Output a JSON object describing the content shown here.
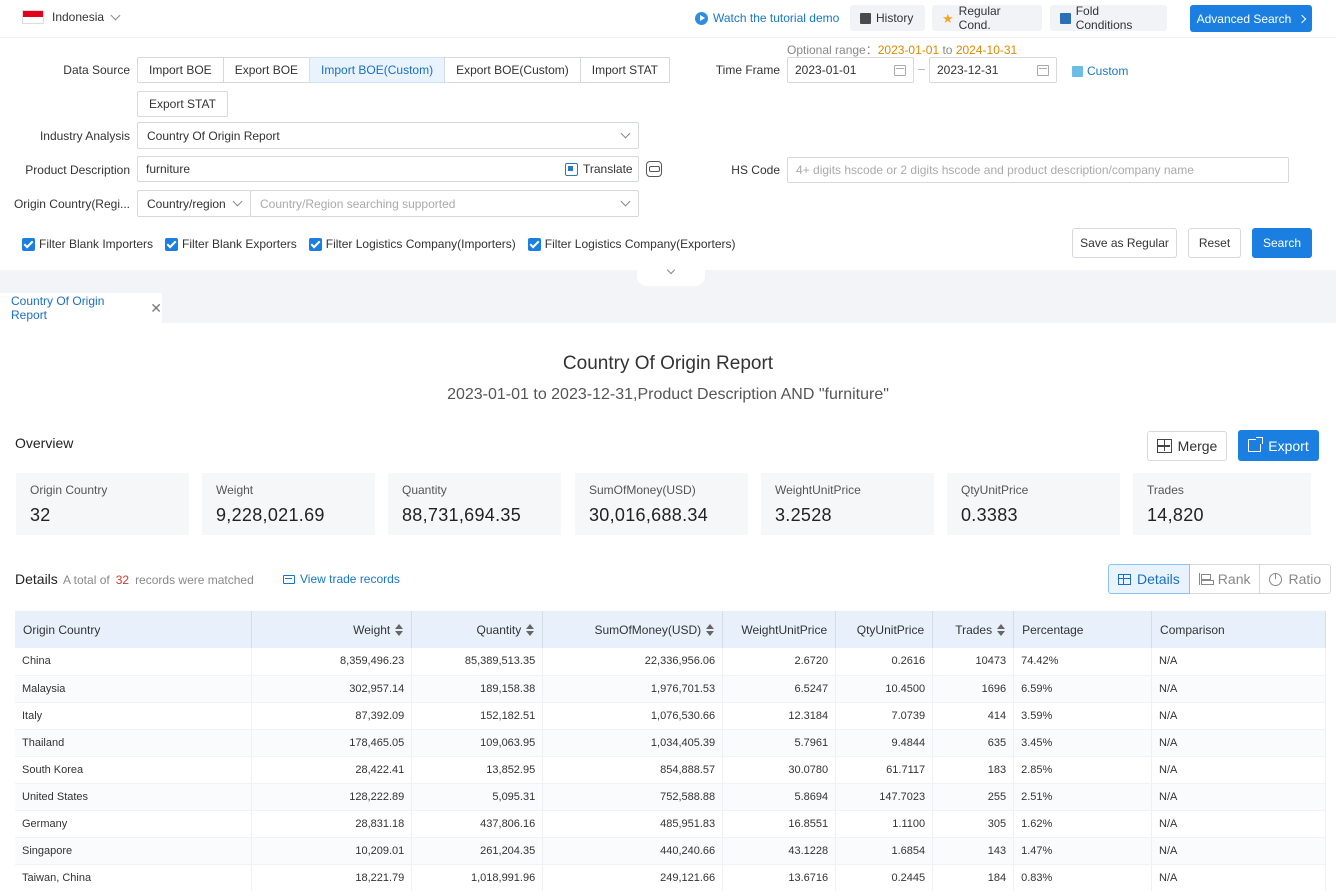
{
  "topbar": {
    "country": "Indonesia",
    "tutorial": "Watch the tutorial demo",
    "history": "History",
    "regular_cond": "Regular Cond.",
    "fold_conditions": "Fold Conditions",
    "advanced_search": "Advanced Search"
  },
  "form": {
    "optional_range_label": "Optional range：",
    "optional_from": "2023-01-01",
    "optional_to_word": "to",
    "optional_to": "2024-10-31",
    "data_source_label": "Data Source",
    "data_source_options": [
      "Import BOE",
      "Export BOE",
      "Import BOE(Custom)",
      "Export BOE(Custom)",
      "Import STAT",
      "Export STAT"
    ],
    "data_source_selected": "Import BOE(Custom)",
    "time_frame_label": "Time Frame",
    "date_start": "2023-01-01",
    "date_end": "2023-12-31",
    "custom": "Custom",
    "industry_label": "Industry Analysis",
    "industry_value": "Country Of Origin Report",
    "product_label": "Product Description",
    "product_value": "furniture",
    "translate": "Translate",
    "hs_label": "HS Code",
    "hs_placeholder": "4+ digits hscode or 2 digits hscode and product description/company name",
    "origin_label": "Origin Country(Regi...",
    "origin_mode": "Country/region",
    "origin_placeholder": "Country/Region searching supported",
    "filters": [
      "Filter Blank Importers",
      "Filter Blank Exporters",
      "Filter Logistics Company(Importers)",
      "Filter Logistics Company(Exporters)"
    ],
    "save_regular": "Save as Regular",
    "reset": "Reset",
    "search": "Search"
  },
  "tab": {
    "label": "Country Of Origin Report"
  },
  "report": {
    "title": "Country Of Origin Report",
    "subtitle": "2023-01-01 to 2023-12-31,Product Description AND \"furniture\""
  },
  "overview": {
    "heading": "Overview",
    "merge": "Merge",
    "export": "Export",
    "stats": [
      {
        "label": "Origin Country",
        "value": "32"
      },
      {
        "label": "Weight",
        "value": "9,228,021.69"
      },
      {
        "label": "Quantity",
        "value": "88,731,694.35"
      },
      {
        "label": "SumOfMoney(USD)",
        "value": "30,016,688.34"
      },
      {
        "label": "WeightUnitPrice",
        "value": "3.2528"
      },
      {
        "label": "QtyUnitPrice",
        "value": "0.3383"
      },
      {
        "label": "Trades",
        "value": "14,820"
      }
    ]
  },
  "details": {
    "heading": "Details",
    "total_prefix": "A total of",
    "total_count": "32",
    "total_suffix": "records were matched",
    "view_trade": "View trade records",
    "views": [
      "Details",
      "Rank",
      "Ratio"
    ],
    "columns": [
      "Origin Country",
      "Weight",
      "Quantity",
      "SumOfMoney(USD)",
      "WeightUnitPrice",
      "QtyUnitPrice",
      "Trades",
      "Percentage",
      "Comparison"
    ],
    "rows": [
      [
        "China",
        "8,359,496.23",
        "85,389,513.35",
        "22,336,956.06",
        "2.6720",
        "0.2616",
        "10473",
        "74.42%",
        "N/A"
      ],
      [
        "Malaysia",
        "302,957.14",
        "189,158.38",
        "1,976,701.53",
        "6.5247",
        "10.4500",
        "1696",
        "6.59%",
        "N/A"
      ],
      [
        "Italy",
        "87,392.09",
        "152,182.51",
        "1,076,530.66",
        "12.3184",
        "7.0739",
        "414",
        "3.59%",
        "N/A"
      ],
      [
        "Thailand",
        "178,465.05",
        "109,063.95",
        "1,034,405.39",
        "5.7961",
        "9.4844",
        "635",
        "3.45%",
        "N/A"
      ],
      [
        "South Korea",
        "28,422.41",
        "13,852.95",
        "854,888.57",
        "30.0780",
        "61.7117",
        "183",
        "2.85%",
        "N/A"
      ],
      [
        "United States",
        "128,222.89",
        "5,095.31",
        "752,588.88",
        "5.8694",
        "147.7023",
        "255",
        "2.51%",
        "N/A"
      ],
      [
        "Germany",
        "28,831.18",
        "437,806.16",
        "485,951.83",
        "16.8551",
        "1.1100",
        "305",
        "1.62%",
        "N/A"
      ],
      [
        "Singapore",
        "10,209.01",
        "261,204.35",
        "440,240.66",
        "43.1228",
        "1.6854",
        "143",
        "1.47%",
        "N/A"
      ],
      [
        "Taiwan, China",
        "18,221.79",
        "1,018,991.96",
        "249,121.66",
        "13.6716",
        "0.2445",
        "184",
        "0.83%",
        "N/A"
      ]
    ]
  },
  "colors": {
    "accent": "#1a7fe0",
    "link": "#1677c8",
    "date_highlight": "#d98b00",
    "count_red": "#d2392b"
  }
}
